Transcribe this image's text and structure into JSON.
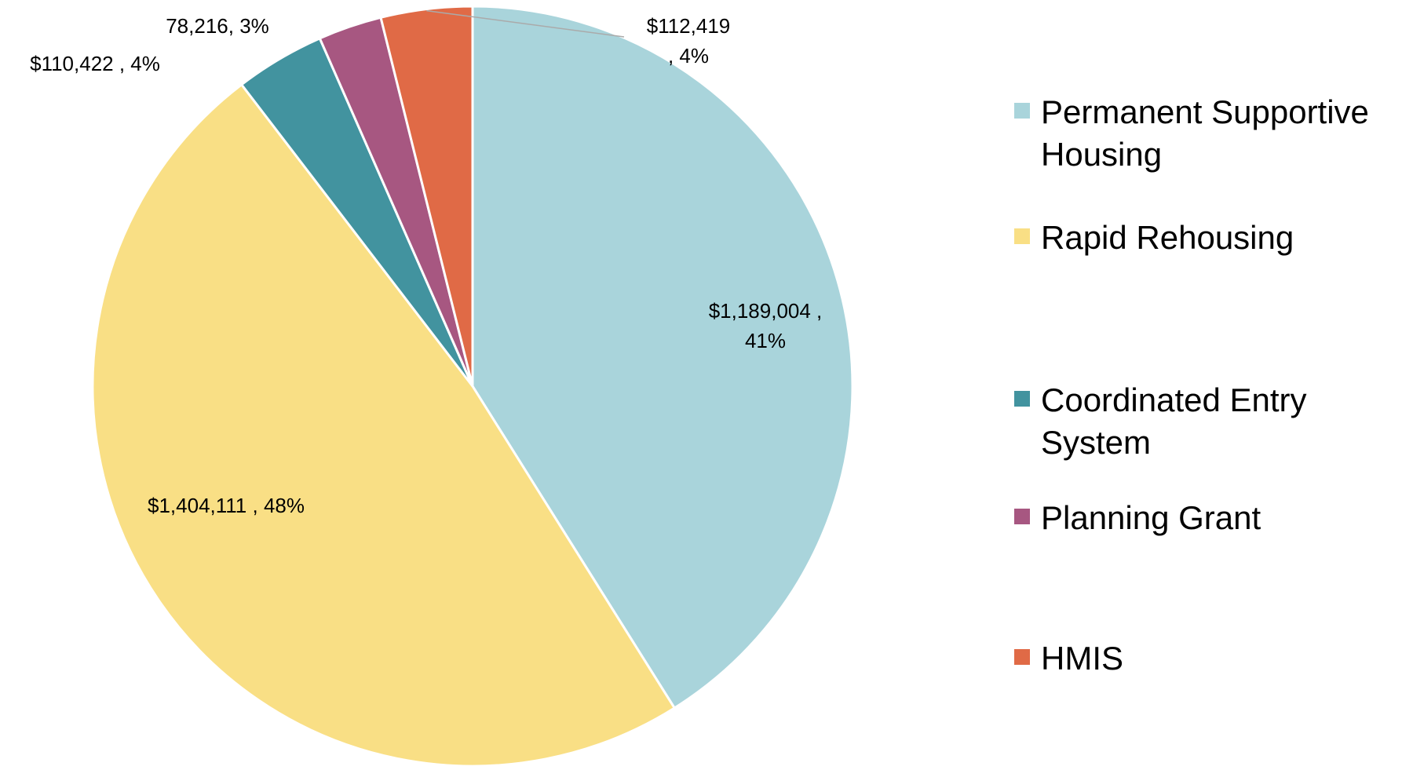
{
  "chart_data": {
    "type": "pie",
    "categories": [
      "Permanent Supportive Housing",
      "Rapid Rehousing",
      "Coordinated Entry System",
      "Planning Grant",
      "HMIS"
    ],
    "values": [
      1189004,
      1404111,
      110422,
      78216,
      112419
    ],
    "value_labels": [
      [
        "$1,189,004 ,",
        "41%"
      ],
      [
        "$1,404,111 , 48%"
      ],
      [
        "$110,422 , 4%"
      ],
      [
        "78,216, 3%"
      ],
      [
        "$112,419",
        ", 4%"
      ]
    ],
    "colors": [
      "#a9d4db",
      "#f9df85",
      "#42939f",
      "#a75781",
      "#e06a46"
    ],
    "legend": "right"
  }
}
